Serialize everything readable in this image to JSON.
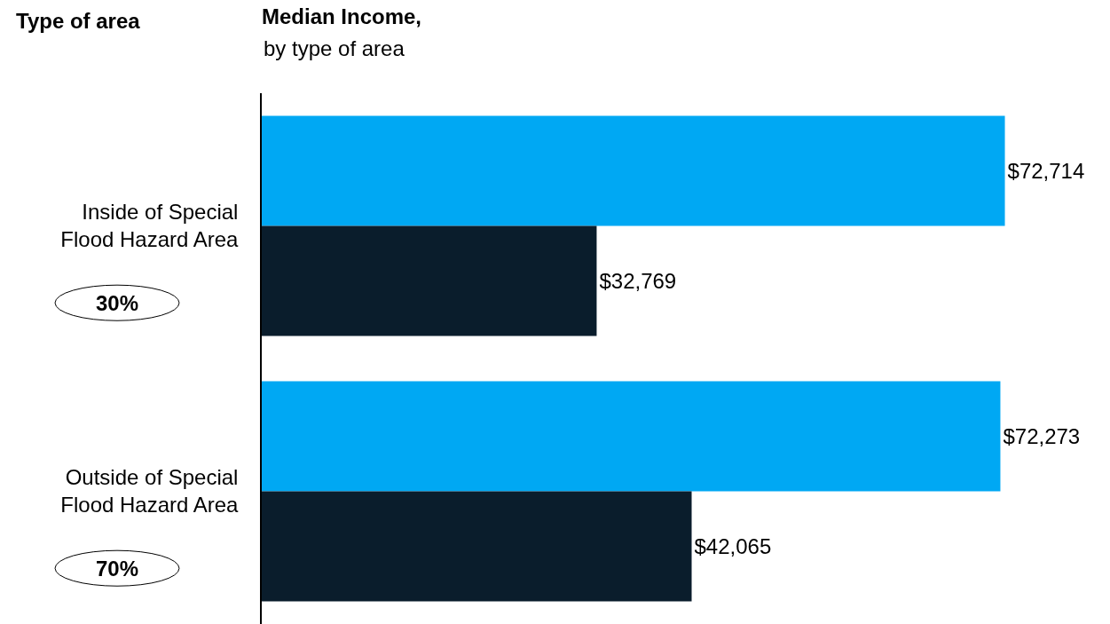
{
  "chart_data": {
    "type": "bar",
    "orientation": "horizontal",
    "title": "Median Income,",
    "subtitle": "by type of area",
    "ylabel": "Type of area",
    "categories": [
      "Inside of Special Flood Hazard Area",
      "Outside of Special Flood Hazard Area"
    ],
    "series": [
      {
        "color": "#00a8f3",
        "values": [
          72714,
          72273
        ],
        "value_labels": [
          "$72,714",
          "$72,273"
        ]
      },
      {
        "color": "#0a1d2c",
        "values": [
          32769,
          42065
        ],
        "value_labels": [
          "$32,769",
          "$42,065"
        ]
      }
    ],
    "annotations": [
      "30%",
      "70%"
    ],
    "xlim": [
      0,
      83000
    ],
    "tick_labels": "y",
    "grid": false
  }
}
